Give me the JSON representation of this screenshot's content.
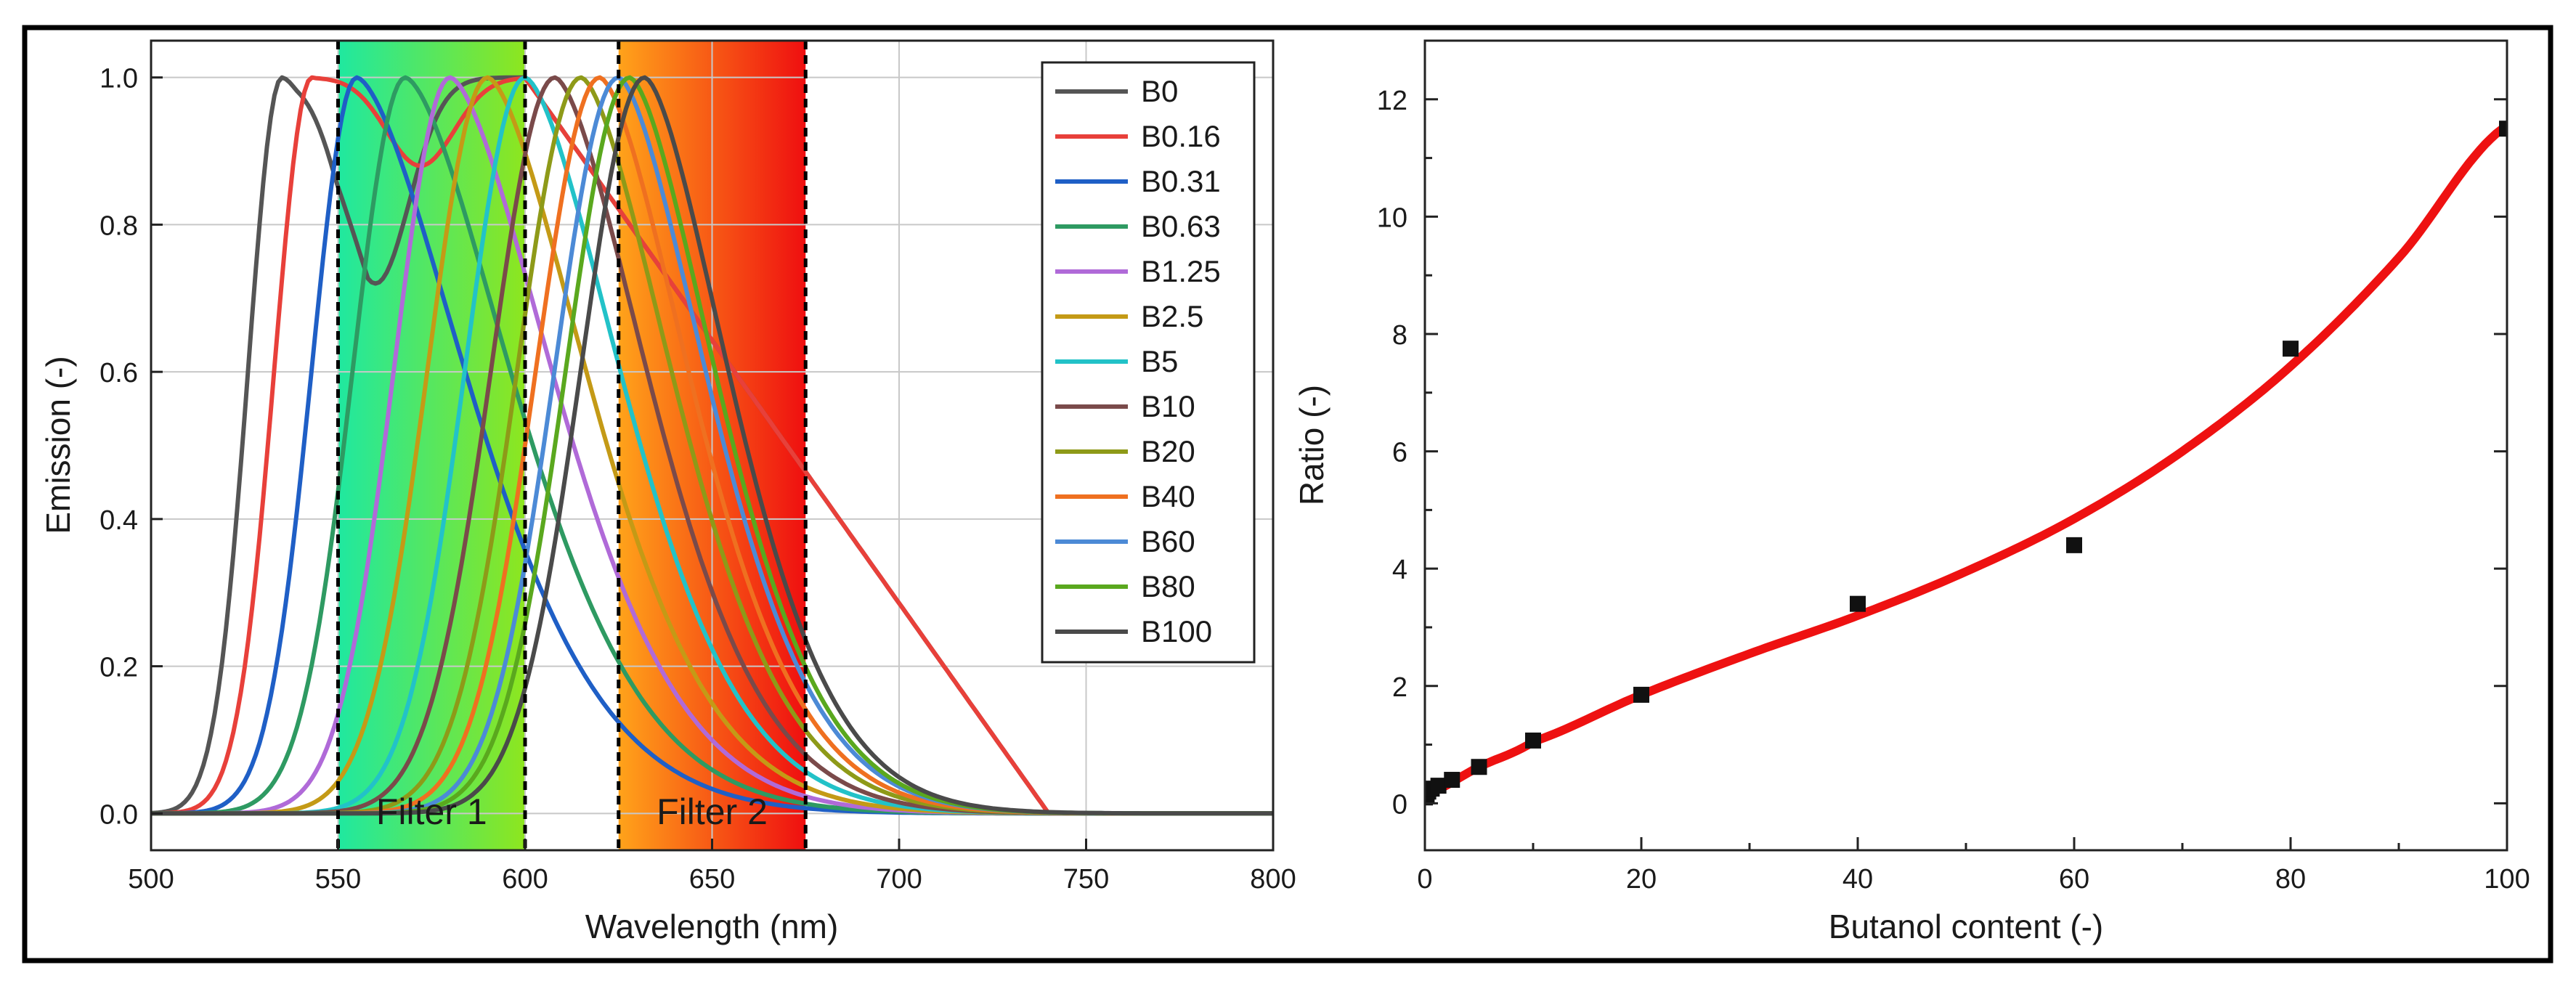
{
  "chart_data": [
    {
      "type": "line",
      "xlabel": "Wavelength (nm)",
      "ylabel": "Emission (-)",
      "xlim": [
        500,
        800
      ],
      "ylim": [
        -0.05,
        1.05
      ],
      "xticks": [
        500,
        550,
        600,
        650,
        700,
        750,
        800
      ],
      "yticks": [
        0.0,
        0.2,
        0.4,
        0.6,
        0.8,
        1.0
      ],
      "ytick_labels": [
        "0.0",
        "0.2",
        "0.4",
        "0.6",
        "0.8",
        "1.0"
      ],
      "grid": true,
      "legend_position": "top-right",
      "filter_bands": [
        {
          "label": "Filter 1",
          "from": 550,
          "to": 600,
          "colors": [
            "#1fe8a0",
            "#8ee61e"
          ]
        },
        {
          "label": "Filter 2",
          "from": 625,
          "to": 675,
          "colors": [
            "#ffa31a",
            "#ef0f10"
          ]
        }
      ],
      "series": [
        {
          "name": "B0",
          "color": "#555555",
          "peak": 535,
          "rise_width": 9,
          "tail_width": 70
        },
        {
          "name": "B0.16",
          "color": "#e8403a",
          "peak": 543,
          "rise_width": 10,
          "tail_width": 68
        },
        {
          "name": "B0.31",
          "color": "#1f5fc6",
          "peak": 555,
          "rise_width": 12,
          "tail_width": 66
        },
        {
          "name": "B0.63",
          "color": "#2e9a62",
          "peak": 568,
          "rise_width": 14,
          "tail_width": 64
        },
        {
          "name": "B1.25",
          "color": "#b06ad8",
          "peak": 580,
          "rise_width": 15,
          "tail_width": 62
        },
        {
          "name": "B2.5",
          "color": "#c49a16",
          "peak": 590,
          "rise_width": 16,
          "tail_width": 60
        },
        {
          "name": "B5",
          "color": "#22c2c8",
          "peak": 600,
          "rise_width": 16,
          "tail_width": 58
        },
        {
          "name": "B10",
          "color": "#7a4a4a",
          "peak": 608,
          "rise_width": 17,
          "tail_width": 56
        },
        {
          "name": "B20",
          "color": "#8e9a18",
          "peak": 615,
          "rise_width": 17,
          "tail_width": 55
        },
        {
          "name": "B40",
          "color": "#ef7020",
          "peak": 620,
          "rise_width": 17,
          "tail_width": 54
        },
        {
          "name": "B60",
          "color": "#4c8ad6",
          "peak": 625,
          "rise_width": 17,
          "tail_width": 53
        },
        {
          "name": "B80",
          "color": "#5aa81e",
          "peak": 628,
          "rise_width": 17,
          "tail_width": 52
        },
        {
          "name": "B100",
          "color": "#4a4a4a",
          "peak": 632,
          "rise_width": 17,
          "tail_width": 51
        }
      ]
    },
    {
      "type": "scatter",
      "xlabel": "Butanol content (-)",
      "ylabel": "Ratio (-)",
      "xlim": [
        0,
        100
      ],
      "ylim": [
        -0.8,
        13
      ],
      "xticks": [
        0,
        20,
        40,
        60,
        80,
        100
      ],
      "yticks": [
        0,
        2,
        4,
        6,
        8,
        10,
        12
      ],
      "grid": false,
      "x": [
        0,
        0.16,
        0.31,
        0.63,
        1.25,
        2.5,
        5,
        10,
        20,
        40,
        60,
        80,
        100
      ],
      "y": [
        0.1,
        0.15,
        0.2,
        0.25,
        0.3,
        0.4,
        0.62,
        1.07,
        1.85,
        3.4,
        4.4,
        7.75,
        11.5
      ],
      "marker_color": "#111111",
      "fit": {
        "color": "#ee1111",
        "x": [
          0,
          5,
          10,
          20,
          30,
          40,
          50,
          60,
          70,
          80,
          90,
          100
        ],
        "y": [
          0.15,
          0.62,
          1.05,
          1.85,
          2.55,
          3.2,
          3.95,
          4.85,
          6.0,
          7.45,
          9.3,
          11.55
        ]
      }
    }
  ]
}
